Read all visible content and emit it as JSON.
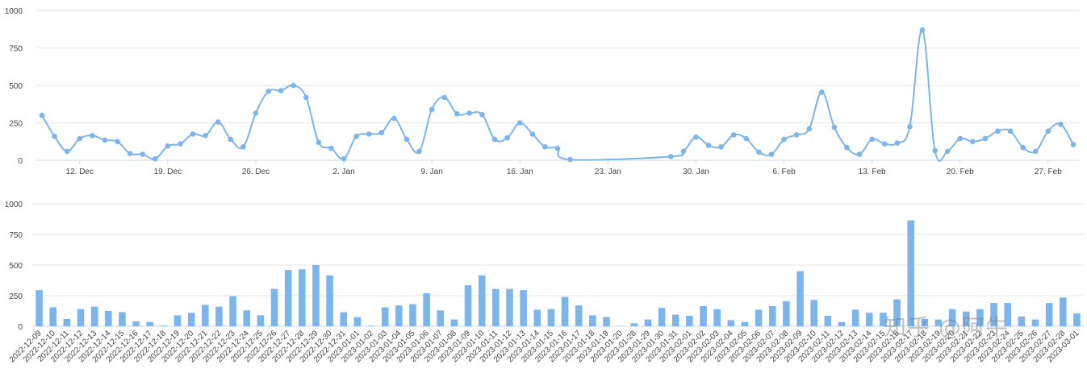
{
  "watermark": "知乎 @阿牛",
  "colors": {
    "series": "#7cb5ec",
    "grid": "#e6e6e6",
    "axis": "#ccd6eb",
    "text": "#444444"
  },
  "chart_data": [
    {
      "type": "line",
      "title": "",
      "xlabel": "",
      "ylabel": "",
      "ylim": [
        0,
        1000
      ],
      "yticks": [
        0,
        250,
        500,
        750,
        1000
      ],
      "xlim": [
        "2022-12-09",
        "2023-03-01"
      ],
      "xticks": [
        {
          "date": "2022-12-12",
          "label": "12. Dec"
        },
        {
          "date": "2022-12-19",
          "label": "19. Dec"
        },
        {
          "date": "2022-12-26",
          "label": "26. Dec"
        },
        {
          "date": "2023-01-02",
          "label": "2. Jan"
        },
        {
          "date": "2023-01-09",
          "label": "9. Jan"
        },
        {
          "date": "2023-01-16",
          "label": "16. Jan"
        },
        {
          "date": "2023-01-23",
          "label": "23. Jan"
        },
        {
          "date": "2023-01-30",
          "label": "30. Jan"
        },
        {
          "date": "2023-02-06",
          "label": "6. Feb"
        },
        {
          "date": "2023-02-13",
          "label": "13. Feb"
        },
        {
          "date": "2023-02-20",
          "label": "20. Feb"
        },
        {
          "date": "2023-02-27",
          "label": "27. Feb"
        }
      ],
      "grid": true,
      "legend": "none",
      "series": [
        {
          "points": [
            [
              "2022-12-09",
              300
            ],
            [
              "2022-12-10",
              160
            ],
            [
              "2022-12-11",
              60
            ],
            [
              "2022-12-12",
              145
            ],
            [
              "2022-12-13",
              165
            ],
            [
              "2022-12-14",
              135
            ],
            [
              "2022-12-15",
              125
            ],
            [
              "2022-12-16",
              45
            ],
            [
              "2022-12-17",
              40
            ],
            [
              "2022-12-18",
              10
            ],
            [
              "2022-12-19",
              95
            ],
            [
              "2022-12-20",
              110
            ],
            [
              "2022-12-21",
              175
            ],
            [
              "2022-12-22",
              165
            ],
            [
              "2022-12-23",
              255
            ],
            [
              "2022-12-24",
              140
            ],
            [
              "2022-12-25",
              90
            ],
            [
              "2022-12-26",
              315
            ],
            [
              "2022-12-27",
              460
            ],
            [
              "2022-12-28",
              465
            ],
            [
              "2022-12-29",
              500
            ],
            [
              "2022-12-30",
              420
            ],
            [
              "2022-12-31",
              120
            ],
            [
              "2023-01-01",
              80
            ],
            [
              "2023-01-02",
              10
            ],
            [
              "2023-01-03",
              160
            ],
            [
              "2023-01-04",
              175
            ],
            [
              "2023-01-05",
              185
            ],
            [
              "2023-01-06",
              280
            ],
            [
              "2023-01-07",
              140
            ],
            [
              "2023-01-08",
              60
            ],
            [
              "2023-01-09",
              340
            ],
            [
              "2023-01-10",
              420
            ],
            [
              "2023-01-11",
              310
            ],
            [
              "2023-01-12",
              315
            ],
            [
              "2023-01-13",
              305
            ],
            [
              "2023-01-14",
              140
            ],
            [
              "2023-01-15",
              150
            ],
            [
              "2023-01-16",
              250
            ],
            [
              "2023-01-17",
              175
            ],
            [
              "2023-01-18",
              90
            ],
            [
              "2023-01-19",
              80
            ],
            [
              "2023-01-20",
              5
            ],
            [
              "2023-01-28",
              25
            ],
            [
              "2023-01-29",
              60
            ],
            [
              "2023-01-30",
              155
            ],
            [
              "2023-01-31",
              100
            ],
            [
              "2023-02-01",
              90
            ],
            [
              "2023-02-02",
              170
            ],
            [
              "2023-02-03",
              145
            ],
            [
              "2023-02-04",
              55
            ],
            [
              "2023-02-05",
              40
            ],
            [
              "2023-02-06",
              140
            ],
            [
              "2023-02-07",
              170
            ],
            [
              "2023-02-08",
              210
            ],
            [
              "2023-02-09",
              455
            ],
            [
              "2023-02-10",
              220
            ],
            [
              "2023-02-11",
              85
            ],
            [
              "2023-02-12",
              40
            ],
            [
              "2023-02-13",
              140
            ],
            [
              "2023-02-14",
              110
            ],
            [
              "2023-02-15",
              115
            ],
            [
              "2023-02-16",
              225
            ],
            [
              "2023-02-17",
              870
            ],
            [
              "2023-02-18",
              65
            ],
            [
              "2023-02-19",
              60
            ],
            [
              "2023-02-20",
              145
            ],
            [
              "2023-02-21",
              125
            ],
            [
              "2023-02-22",
              145
            ],
            [
              "2023-02-23",
              195
            ],
            [
              "2023-02-24",
              195
            ],
            [
              "2023-02-25",
              85
            ],
            [
              "2023-02-26",
              60
            ],
            [
              "2023-02-27",
              195
            ],
            [
              "2023-02-28",
              240
            ],
            [
              "2023-03-01",
              105
            ]
          ]
        }
      ]
    },
    {
      "type": "bar",
      "title": "",
      "xlabel": "",
      "ylabel": "",
      "ylim": [
        0,
        1000
      ],
      "yticks": [
        0,
        250,
        500,
        750,
        1000
      ],
      "grid": true,
      "legend": "none",
      "categories": [
        "2022-12-09",
        "2022-12-10",
        "2022-12-11",
        "2022-12-12",
        "2022-12-13",
        "2022-12-14",
        "2022-12-15",
        "2022-12-16",
        "2022-12-17",
        "2022-12-18",
        "2022-12-19",
        "2022-12-20",
        "2022-12-21",
        "2022-12-22",
        "2022-12-23",
        "2022-12-24",
        "2022-12-25",
        "2022-12-26",
        "2022-12-27",
        "2022-12-28",
        "2022-12-29",
        "2022-12-30",
        "2022-12-31",
        "2023-01-01",
        "2023-01-02",
        "2023-01-03",
        "2023-01-04",
        "2023-01-05",
        "2023-01-06",
        "2023-01-07",
        "2023-01-08",
        "2023-01-09",
        "2023-01-10",
        "2023-01-11",
        "2023-01-12",
        "2023-01-13",
        "2023-01-14",
        "2023-01-15",
        "2023-01-16",
        "2023-01-17",
        "2023-01-18",
        "2023-01-19",
        "2023-01-20",
        "2023-01-28",
        "2023-01-29",
        "2023-01-30",
        "2023-01-31",
        "2023-02-01",
        "2023-02-02",
        "2023-02-03",
        "2023-02-04",
        "2023-02-05",
        "2023-02-06",
        "2023-02-07",
        "2023-02-08",
        "2023-02-09",
        "2023-02-10",
        "2023-02-11",
        "2023-02-12",
        "2023-02-13",
        "2023-02-14",
        "2023-02-15",
        "2023-02-16",
        "2023-02-17",
        "2023-02-18",
        "2023-02-19",
        "2023-02-20",
        "2023-02-21",
        "2023-02-22",
        "2023-02-23",
        "2023-02-24",
        "2023-02-25",
        "2023-02-26",
        "2023-02-27",
        "2023-02-28",
        "2023-03-01"
      ],
      "values": [
        295,
        155,
        60,
        140,
        160,
        125,
        115,
        40,
        35,
        5,
        90,
        110,
        175,
        160,
        245,
        130,
        90,
        305,
        460,
        465,
        500,
        415,
        115,
        75,
        5,
        155,
        170,
        180,
        270,
        130,
        55,
        335,
        415,
        305,
        305,
        295,
        135,
        140,
        240,
        170,
        90,
        75,
        0,
        25,
        55,
        150,
        95,
        85,
        165,
        140,
        50,
        35,
        135,
        165,
        205,
        450,
        215,
        85,
        35,
        135,
        110,
        110,
        220,
        865,
        60,
        55,
        140,
        120,
        140,
        190,
        190,
        80,
        55,
        190,
        235,
        105
      ]
    }
  ]
}
